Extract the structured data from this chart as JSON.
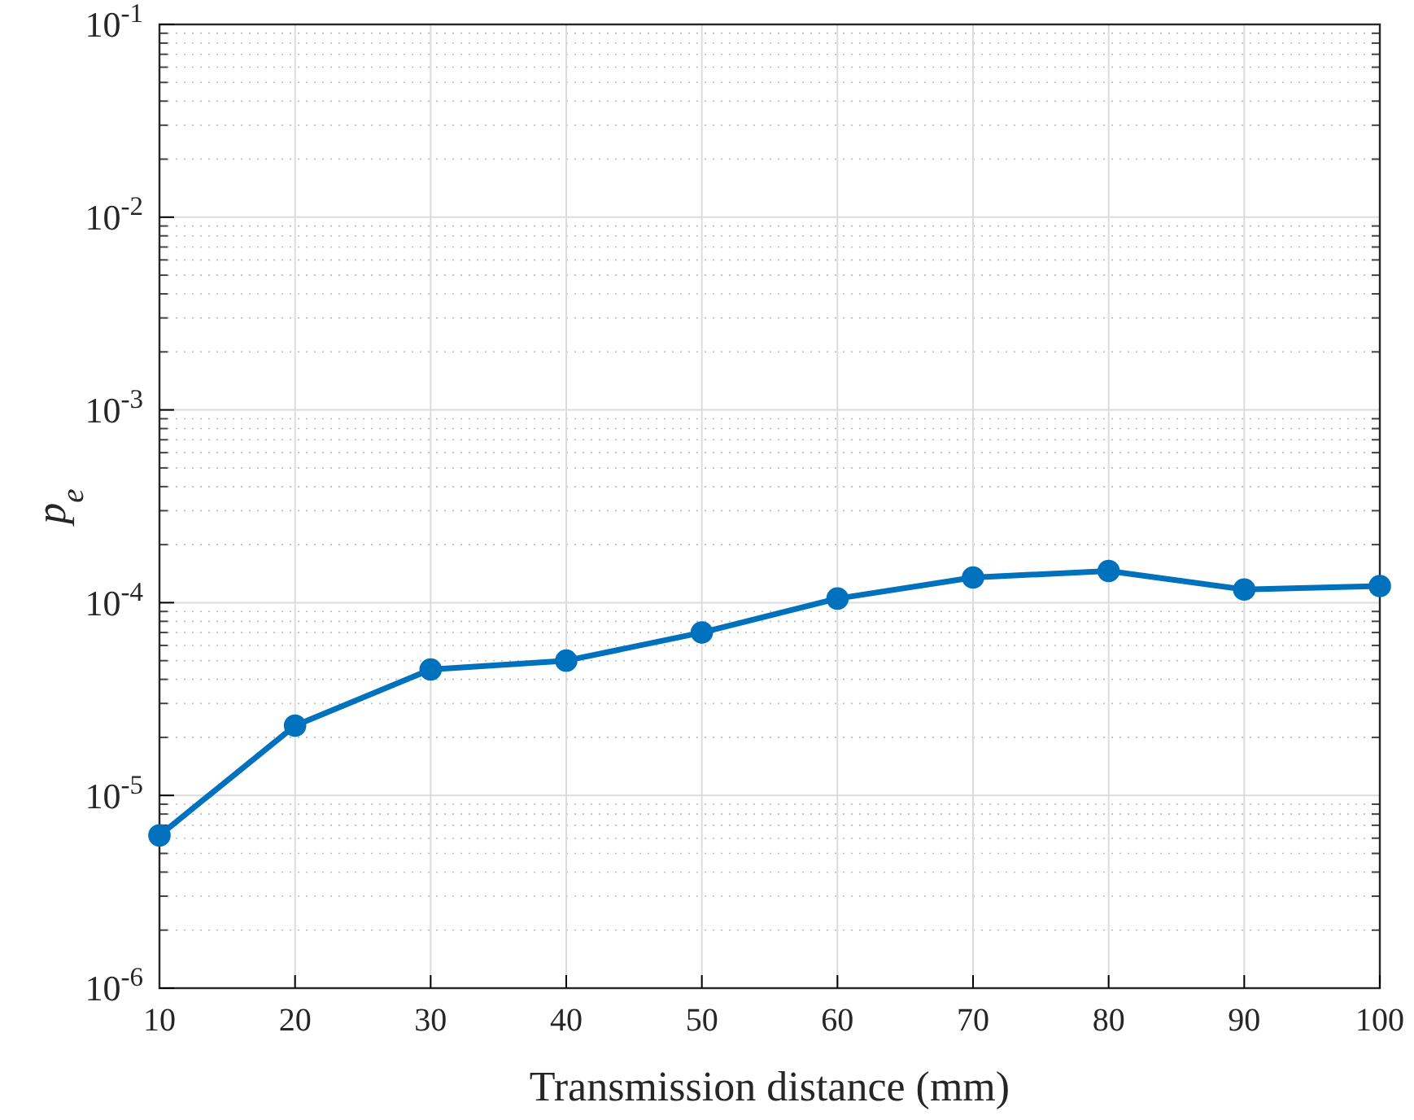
{
  "chart_data": {
    "type": "line",
    "xlabel": "Transmission distance (mm)",
    "ylabel": "p$_{e}$",
    "x": [
      10,
      20,
      30,
      40,
      50,
      60,
      70,
      80,
      90,
      100
    ],
    "series": [
      {
        "color": "#0072bd",
        "values": [
          6.2e-06,
          2.3e-05,
          4.5e-05,
          5e-05,
          7e-05,
          0.000105,
          0.000135,
          0.000146,
          0.000117,
          0.000122
        ]
      }
    ],
    "xlim": [
      10,
      100
    ],
    "xticks": [
      10,
      20,
      30,
      40,
      50,
      60,
      70,
      80,
      90,
      100
    ],
    "ylim": [
      1e-06,
      0.1
    ],
    "yticks": [
      {
        "value": 1e-06,
        "label": "10$^{-6}$"
      },
      {
        "value": 1e-05,
        "label": "10$^{-5}$"
      },
      {
        "value": 0.0001,
        "label": "10$^{-4}$"
      },
      {
        "value": 0.001,
        "label": "10$^{-3}$"
      },
      {
        "value": 0.01,
        "label": "10$^{-2}$"
      },
      {
        "value": 0.1,
        "label": "10$^{-1}$"
      }
    ],
    "log": "y",
    "grid": true,
    "marker": "circle",
    "line_style": "solid"
  }
}
